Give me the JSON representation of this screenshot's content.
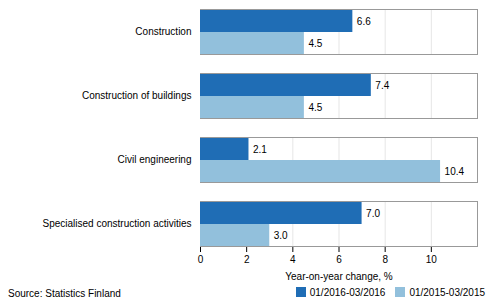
{
  "chart_data": {
    "type": "bar",
    "orientation": "horizontal",
    "categories": [
      "Specialised construction activities",
      "Civil engineering",
      "Construction of buildings",
      "Construction"
    ],
    "series": [
      {
        "name": "01/2016-03/2016",
        "color": "#1F6DB5",
        "values": [
          7.0,
          2.1,
          7.4,
          6.6
        ],
        "value_labels": [
          "7.0",
          "2.1",
          "7.4",
          "6.6"
        ]
      },
      {
        "name": "01/2015-03/2015",
        "color": "#92C0DC",
        "values": [
          3.0,
          10.4,
          4.5,
          4.5
        ],
        "value_labels": [
          "3.0",
          "10.4",
          "4.5",
          "4.5"
        ]
      }
    ],
    "xlabel": "Year-on-year change, %",
    "xlim": [
      0,
      12
    ],
    "xticks": [
      0,
      2,
      4,
      6,
      8,
      10
    ],
    "grid": true,
    "legend": "lower right",
    "data_labels": true,
    "annotations": [
      "Source: Statistics Finland"
    ]
  }
}
